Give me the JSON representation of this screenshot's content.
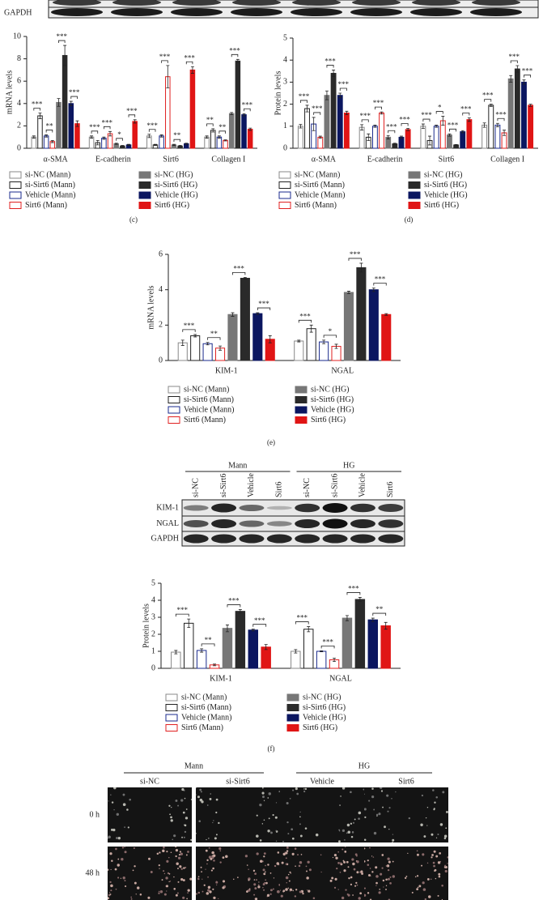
{
  "blot_top": {
    "rows": [
      "GAPDH"
    ]
  },
  "chart_data": [
    {
      "type": "bar",
      "panel": "(c)",
      "ylabel": "mRNA levels",
      "ylim": [
        0,
        10
      ],
      "yticks": [
        0,
        2,
        4,
        6,
        8,
        10
      ],
      "categories": [
        "α-SMA",
        "E-cadherin",
        "Sirt6",
        "Collagen I"
      ],
      "significance": [
        [
          "***",
          "**",
          "***",
          "***"
        ],
        [
          "***",
          "***",
          "*",
          "***"
        ],
        [
          "***",
          "***",
          "**",
          "***"
        ],
        [
          "**",
          "**",
          "***",
          "***"
        ]
      ],
      "series": [
        {
          "name": "si-NC (Mann)",
          "color": "#888888",
          "fill": "#ffffff",
          "values": [
            1.0,
            1.0,
            1.1,
            1.0
          ],
          "errors": [
            0.1,
            0.1,
            0.15,
            0.1
          ]
        },
        {
          "name": "si-Sirt6 (Mann)",
          "color": "#222222",
          "fill": "#ffffff",
          "values": [
            2.9,
            0.5,
            0.3,
            1.6
          ],
          "errors": [
            0.25,
            0.2,
            0.05,
            0.15
          ]
        },
        {
          "name": "Vehicle (Mann)",
          "color": "#1a2a8c",
          "fill": "#ffffff",
          "values": [
            1.1,
            0.9,
            1.1,
            1.0
          ],
          "errors": [
            0.1,
            0.1,
            0.1,
            0.1
          ]
        },
        {
          "name": "Sirt6 (Mann)",
          "color": "#e02020",
          "fill": "#ffffff",
          "values": [
            0.6,
            1.3,
            6.4,
            0.7
          ],
          "errors": [
            0.1,
            0.2,
            1.0,
            0.05
          ]
        },
        {
          "name": "si-NC (HG)",
          "color": "#777777",
          "fill": "#777777",
          "values": [
            4.1,
            0.4,
            0.3,
            3.1
          ],
          "errors": [
            0.35,
            0.05,
            0.05,
            0.1
          ]
        },
        {
          "name": "si-Sirt6 (HG)",
          "color": "#2a2a2a",
          "fill": "#2a2a2a",
          "values": [
            8.3,
            0.2,
            0.2,
            7.8
          ],
          "errors": [
            0.9,
            0.05,
            0.05,
            0.15
          ]
        },
        {
          "name": "Vehicle (HG)",
          "color": "#0b1660",
          "fill": "#0b1660",
          "values": [
            4.0,
            0.3,
            0.4,
            3.0
          ],
          "errors": [
            0.2,
            0.05,
            0.05,
            0.1
          ]
        },
        {
          "name": "Sirt6 (HG)",
          "color": "#e01515",
          "fill": "#e01515",
          "values": [
            2.2,
            2.4,
            7.0,
            1.7
          ],
          "errors": [
            0.25,
            0.15,
            0.3,
            0.1
          ]
        }
      ]
    },
    {
      "type": "bar",
      "panel": "(d)",
      "ylabel": "Protein levels",
      "ylim": [
        0,
        5
      ],
      "yticks": [
        0,
        1,
        2,
        3,
        4,
        5
      ],
      "categories": [
        "α-SMA",
        "E-cadherin",
        "Sirt6",
        "Collagen I"
      ],
      "significance": [
        [
          "***",
          "***",
          "***",
          "***"
        ],
        [
          "***",
          "***",
          "***",
          "***"
        ],
        [
          "***",
          "*",
          "***",
          "***"
        ],
        [
          "***",
          "***",
          "***",
          "***"
        ]
      ],
      "series": [
        {
          "name": "si-NC (Mann)",
          "color": "#888888",
          "fill": "#ffffff",
          "values": [
            1.0,
            0.95,
            1.0,
            1.05
          ],
          "errors": [
            0.08,
            0.12,
            0.1,
            0.1
          ]
        },
        {
          "name": "si-Sirt6 (Mann)",
          "color": "#222222",
          "fill": "#ffffff",
          "values": [
            1.8,
            0.5,
            0.35,
            1.95
          ],
          "errors": [
            0.15,
            0.15,
            0.2,
            0.05
          ]
        },
        {
          "name": "Vehicle (Mann)",
          "color": "#1a2a8c",
          "fill": "#ffffff",
          "values": [
            1.1,
            1.0,
            1.0,
            1.05
          ],
          "errors": [
            0.3,
            0.05,
            0.05,
            0.08
          ]
        },
        {
          "name": "Sirt6 (Mann)",
          "color": "#e02020",
          "fill": "#ffffff",
          "values": [
            0.5,
            1.6,
            1.25,
            0.7
          ],
          "errors": [
            0.05,
            0.05,
            0.2,
            0.12
          ]
        },
        {
          "name": "si-NC (HG)",
          "color": "#777777",
          "fill": "#777777",
          "values": [
            2.4,
            0.5,
            0.6,
            3.15
          ],
          "errors": [
            0.2,
            0.08,
            0.05,
            0.15
          ]
        },
        {
          "name": "si-Sirt6 (HG)",
          "color": "#2a2a2a",
          "fill": "#2a2a2a",
          "values": [
            3.4,
            0.2,
            0.15,
            3.6
          ],
          "errors": [
            0.15,
            0.03,
            0.02,
            0.15
          ]
        },
        {
          "name": "Vehicle (HG)",
          "color": "#0b1660",
          "fill": "#0b1660",
          "values": [
            2.4,
            0.5,
            0.75,
            3.0
          ],
          "errors": [
            0.1,
            0.05,
            0.05,
            0.1
          ]
        },
        {
          "name": "Sirt6 (HG)",
          "color": "#e01515",
          "fill": "#e01515",
          "values": [
            1.6,
            0.85,
            1.3,
            1.95
          ],
          "errors": [
            0.08,
            0.05,
            0.08,
            0.05
          ]
        }
      ]
    },
    {
      "type": "bar",
      "panel": "(e)",
      "ylabel": "mRNA levels",
      "ylim": [
        0,
        6
      ],
      "yticks": [
        0,
        2,
        4,
        6
      ],
      "categories": [
        "KIM-1",
        "NGAL"
      ],
      "significance": [
        [
          "***",
          "**",
          "***",
          "***"
        ],
        [
          "***",
          "*",
          "***",
          "***"
        ]
      ],
      "series": [
        {
          "name": "si-NC (Mann)",
          "color": "#888888",
          "fill": "#ffffff",
          "values": [
            1.0,
            1.1
          ],
          "errors": [
            0.15,
            0.05
          ]
        },
        {
          "name": "si-Sirt6 (Mann)",
          "color": "#222222",
          "fill": "#ffffff",
          "values": [
            1.4,
            1.8
          ],
          "errors": [
            0.07,
            0.2
          ]
        },
        {
          "name": "Vehicle (Mann)",
          "color": "#1a2a8c",
          "fill": "#ffffff",
          "values": [
            0.95,
            1.05
          ],
          "errors": [
            0.07,
            0.1
          ]
        },
        {
          "name": "Sirt6 (Mann)",
          "color": "#e02020",
          "fill": "#ffffff",
          "values": [
            0.7,
            0.8
          ],
          "errors": [
            0.12,
            0.12
          ]
        },
        {
          "name": "si-NC (HG)",
          "color": "#777777",
          "fill": "#777777",
          "values": [
            2.6,
            3.85
          ],
          "errors": [
            0.1,
            0.07
          ]
        },
        {
          "name": "si-Sirt6 (HG)",
          "color": "#2a2a2a",
          "fill": "#2a2a2a",
          "values": [
            4.65,
            5.25
          ],
          "errors": [
            0.05,
            0.25
          ]
        },
        {
          "name": "Vehicle (HG)",
          "color": "#0b1660",
          "fill": "#0b1660",
          "values": [
            2.65,
            4.0
          ],
          "errors": [
            0.05,
            0.1
          ]
        },
        {
          "name": "Sirt6 (HG)",
          "color": "#e01515",
          "fill": "#e01515",
          "values": [
            1.2,
            2.6
          ],
          "errors": [
            0.2,
            0.05
          ]
        }
      ]
    },
    {
      "type": "bar",
      "panel": "(f)",
      "ylabel": "Protein levels",
      "ylim": [
        0,
        5
      ],
      "yticks": [
        0,
        1,
        2,
        3,
        4,
        5
      ],
      "categories": [
        "KIM-1",
        "NGAL"
      ],
      "significance": [
        [
          "***",
          "**",
          "***",
          "***"
        ],
        [
          "***",
          "***",
          "***",
          "**"
        ]
      ],
      "series": [
        {
          "name": "si-NC (Mann)",
          "color": "#888888",
          "fill": "#ffffff",
          "values": [
            0.95,
            1.0
          ],
          "errors": [
            0.1,
            0.1
          ]
        },
        {
          "name": "si-Sirt6 (Mann)",
          "color": "#222222",
          "fill": "#ffffff",
          "values": [
            2.65,
            2.3
          ],
          "errors": [
            0.25,
            0.15
          ]
        },
        {
          "name": "Vehicle (Mann)",
          "color": "#1a2a8c",
          "fill": "#ffffff",
          "values": [
            1.05,
            1.0
          ],
          "errors": [
            0.1,
            0.03
          ]
        },
        {
          "name": "Sirt6 (Mann)",
          "color": "#e02020",
          "fill": "#ffffff",
          "values": [
            0.2,
            0.5
          ],
          "errors": [
            0.05,
            0.1
          ]
        },
        {
          "name": "si-NC (HG)",
          "color": "#777777",
          "fill": "#777777",
          "values": [
            2.35,
            2.95
          ],
          "errors": [
            0.2,
            0.15
          ]
        },
        {
          "name": "si-Sirt6 (HG)",
          "color": "#2a2a2a",
          "fill": "#2a2a2a",
          "values": [
            3.35,
            4.05
          ],
          "errors": [
            0.1,
            0.12
          ]
        },
        {
          "name": "Vehicle (HG)",
          "color": "#0b1660",
          "fill": "#0b1660",
          "values": [
            2.25,
            2.85
          ],
          "errors": [
            0.05,
            0.1
          ]
        },
        {
          "name": "Sirt6 (HG)",
          "color": "#e01515",
          "fill": "#e01515",
          "values": [
            1.25,
            2.5
          ],
          "errors": [
            0.15,
            0.2
          ]
        }
      ]
    }
  ],
  "blot": {
    "groups": [
      "Mann",
      "HG"
    ],
    "lanes": [
      "si-NC",
      "si-Sirt6",
      "Vehicle",
      "Sirt6",
      "si-NC",
      "si-Sirt6",
      "Vehicle",
      "Sirt6"
    ],
    "rows": [
      "KIM-1",
      "NGAL",
      "GAPDH"
    ]
  },
  "scratch": {
    "groups": [
      "Mann",
      "HG"
    ],
    "columns": [
      "si-NC",
      "si-Sirt6",
      "Vehicle",
      "Sirt6"
    ],
    "rows": [
      "0 h",
      "48 h"
    ]
  }
}
